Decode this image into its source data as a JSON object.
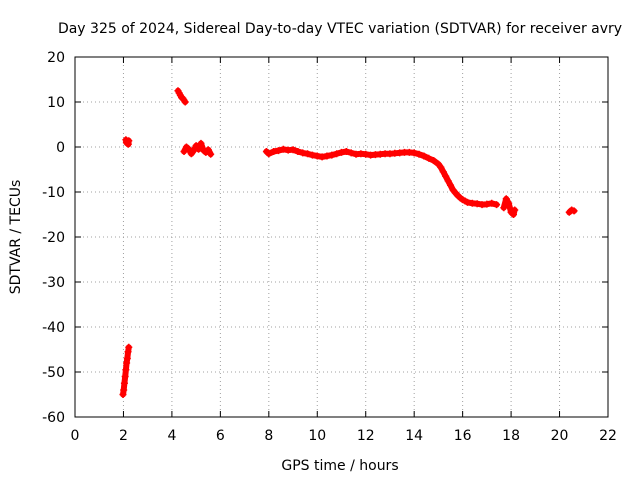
{
  "chart_data": {
    "type": "scatter",
    "title": "Day 325 of 2024, Sidereal Day-to-day VTEC variation (SDTVAR) for receiver avry",
    "xlabel": "GPS time / hours",
    "ylabel": "SDTVAR / TECUs",
    "xlim": [
      0,
      22
    ],
    "ylim": [
      -60,
      20
    ],
    "xticks": [
      0,
      2,
      4,
      6,
      8,
      10,
      12,
      14,
      16,
      18,
      20,
      22
    ],
    "yticks": [
      -60,
      -50,
      -40,
      -30,
      -20,
      -10,
      0,
      10,
      20
    ],
    "grid": true,
    "marker": "+",
    "colors": {
      "series": "#ff0000",
      "grid": "#a0a0a0",
      "axis": "#000000"
    },
    "series": [
      {
        "name": "SDTVAR",
        "segments": [
          {
            "x": [
              2.1,
              2.12,
              2.15,
              2.18,
              2.2,
              2.22
            ],
            "y": [
              1.6,
              1.0,
              0.8,
              1.2,
              0.6,
              1.4
            ]
          },
          {
            "x": [
              1.98,
              2.01,
              2.04,
              2.07,
              2.1,
              2.13,
              2.16,
              2.19,
              2.22
            ],
            "y": [
              -55.0,
              -54.0,
              -52.5,
              -51.0,
              -49.5,
              -48.0,
              -47.0,
              -45.5,
              -44.5
            ]
          },
          {
            "x": [
              4.25,
              4.3,
              4.35,
              4.4,
              4.45,
              4.5,
              4.55
            ],
            "y": [
              12.5,
              12.0,
              11.5,
              11.0,
              10.8,
              10.4,
              10.0
            ]
          },
          {
            "x": [
              4.5,
              4.6,
              4.7,
              4.8,
              4.9,
              5.0,
              5.1,
              5.2,
              5.3,
              5.4,
              5.5,
              5.6
            ],
            "y": [
              -1.0,
              0.0,
              -0.5,
              -1.5,
              -0.8,
              0.3,
              -0.5,
              0.8,
              -0.7,
              -1.2,
              -0.6,
              -1.6
            ]
          },
          {
            "x": [
              7.9,
              8.0,
              8.2,
              8.4,
              8.6,
              8.8,
              9.0,
              9.2,
              9.4,
              9.6,
              9.8,
              10.0,
              10.2,
              10.4,
              10.6,
              10.8,
              11.0,
              11.2,
              11.4,
              11.6,
              11.8,
              12.0,
              12.2,
              12.4,
              12.6,
              12.8,
              13.0,
              13.2,
              13.4,
              13.6,
              13.8,
              14.0,
              14.2,
              14.4,
              14.6,
              14.8,
              15.0,
              15.1,
              15.2,
              15.3,
              15.4,
              15.5,
              15.6,
              15.7,
              15.8,
              15.9,
              16.0,
              16.1,
              16.2,
              16.4,
              16.6,
              16.8,
              17.0,
              17.2,
              17.4
            ],
            "y": [
              -1.0,
              -1.5,
              -1.0,
              -0.8,
              -0.5,
              -0.7,
              -0.6,
              -1.0,
              -1.3,
              -1.5,
              -1.8,
              -2.0,
              -2.2,
              -2.0,
              -1.8,
              -1.5,
              -1.2,
              -1.0,
              -1.3,
              -1.6,
              -1.5,
              -1.6,
              -1.8,
              -1.7,
              -1.6,
              -1.5,
              -1.5,
              -1.4,
              -1.3,
              -1.2,
              -1.2,
              -1.3,
              -1.6,
              -2.0,
              -2.5,
              -3.0,
              -3.8,
              -4.5,
              -5.5,
              -6.5,
              -7.5,
              -8.5,
              -9.5,
              -10.2,
              -10.8,
              -11.3,
              -11.7,
              -12.0,
              -12.3,
              -12.5,
              -12.6,
              -12.8,
              -12.7,
              -12.5,
              -12.8
            ]
          },
          {
            "x": [
              17.7,
              17.8,
              17.9,
              18.0,
              18.1,
              18.15
            ],
            "y": [
              -13.5,
              -11.5,
              -12.5,
              -14.5,
              -15.0,
              -14.0
            ]
          },
          {
            "x": [
              20.4,
              20.5,
              20.6
            ],
            "y": [
              -14.5,
              -14.0,
              -14.2
            ]
          }
        ]
      }
    ]
  }
}
